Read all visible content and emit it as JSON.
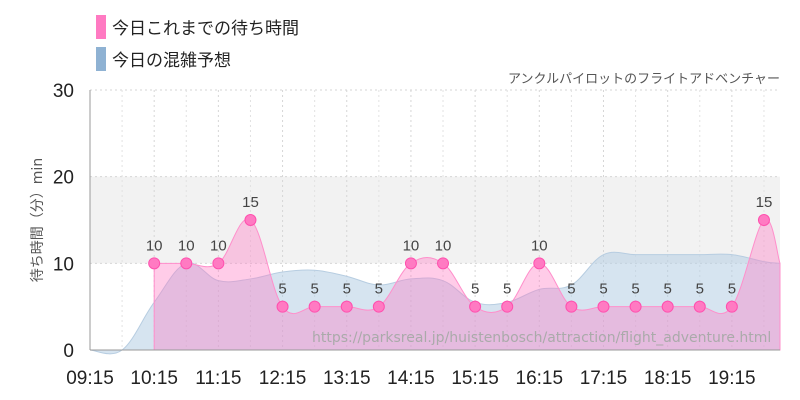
{
  "legend": [
    {
      "label": "今日これまでの待ち時間",
      "color": "#ff7ac2"
    },
    {
      "label": "今日の混雑予想",
      "color": "#8fb2d3"
    }
  ],
  "subtitle": "アンクルパイロットのフライトアドベンチャー",
  "watermark": "https://parksreal.jp/huistenbosch/attraction/flight_adventure.html",
  "chart_data": {
    "type": "area",
    "ylabel": "待ち時間（分）min",
    "ylim": [
      0,
      30
    ],
    "yticks": [
      0,
      10,
      20,
      30
    ],
    "xlim": [
      "09:15",
      "20:00"
    ],
    "xticks": [
      "09:15",
      "10:15",
      "11:15",
      "12:15",
      "13:15",
      "14:15",
      "15:15",
      "16:15",
      "17:15",
      "18:15",
      "19:15"
    ],
    "highlight_band": [
      10,
      20
    ],
    "grid": true,
    "series": [
      {
        "name": "今日これまでの待ち時間",
        "color": "#ff7ac2",
        "data": [
          {
            "x": "10:15",
            "y": 10
          },
          {
            "x": "10:45",
            "y": 10
          },
          {
            "x": "11:15",
            "y": 10
          },
          {
            "x": "11:45",
            "y": 15
          },
          {
            "x": "12:15",
            "y": 5
          },
          {
            "x": "12:45",
            "y": 5
          },
          {
            "x": "13:15",
            "y": 5
          },
          {
            "x": "13:45",
            "y": 5
          },
          {
            "x": "14:15",
            "y": 10
          },
          {
            "x": "14:45",
            "y": 10
          },
          {
            "x": "15:15",
            "y": 5
          },
          {
            "x": "15:45",
            "y": 5
          },
          {
            "x": "16:15",
            "y": 10
          },
          {
            "x": "16:45",
            "y": 5
          },
          {
            "x": "17:15",
            "y": 5
          },
          {
            "x": "17:45",
            "y": 5
          },
          {
            "x": "18:15",
            "y": 5
          },
          {
            "x": "18:45",
            "y": 5
          },
          {
            "x": "19:15",
            "y": 5
          },
          {
            "x": "19:45",
            "y": 15
          }
        ]
      },
      {
        "name": "今日の混雑予想",
        "color": "#8fb2d3",
        "data": [
          {
            "x": "09:15",
            "y": 0
          },
          {
            "x": "09:45",
            "y": 0
          },
          {
            "x": "10:15",
            "y": 5.5
          },
          {
            "x": "10:45",
            "y": 10
          },
          {
            "x": "11:15",
            "y": 8
          },
          {
            "x": "11:45",
            "y": 8.2
          },
          {
            "x": "12:15",
            "y": 9
          },
          {
            "x": "12:45",
            "y": 9.2
          },
          {
            "x": "13:15",
            "y": 8.5
          },
          {
            "x": "13:45",
            "y": 7.5
          },
          {
            "x": "14:15",
            "y": 8.2
          },
          {
            "x": "14:45",
            "y": 8
          },
          {
            "x": "15:15",
            "y": 5.5
          },
          {
            "x": "15:45",
            "y": 5.5
          },
          {
            "x": "16:15",
            "y": 7
          },
          {
            "x": "16:45",
            "y": 7.5
          },
          {
            "x": "17:15",
            "y": 11
          },
          {
            "x": "17:45",
            "y": 11
          },
          {
            "x": "18:15",
            "y": 11
          },
          {
            "x": "18:45",
            "y": 11
          },
          {
            "x": "19:15",
            "y": 11
          },
          {
            "x": "19:45",
            "y": 10.2
          },
          {
            "x": "20:00",
            "y": 10
          }
        ]
      }
    ]
  }
}
